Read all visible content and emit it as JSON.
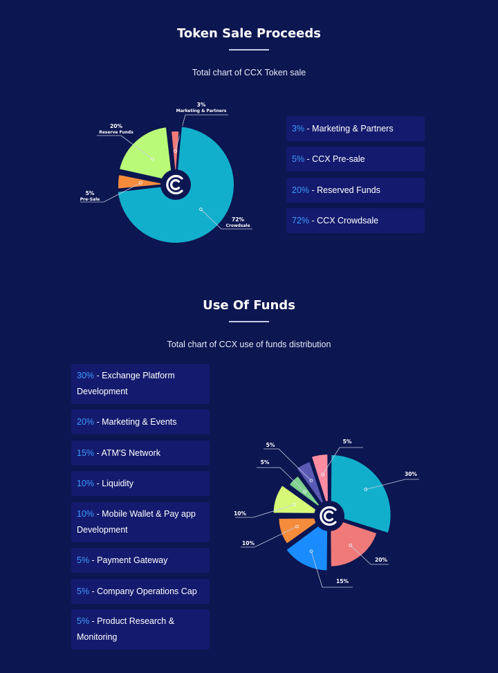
{
  "sale": {
    "title": "Token Sale Proceeds",
    "subtitle": "Total chart of CCX Token sale",
    "legend": [
      {
        "pct": "3%",
        "label": " - Marketing & Partners"
      },
      {
        "pct": "5%",
        "label": " - CCX Pre-sale"
      },
      {
        "pct": "20%",
        "label": " - Reserved Funds"
      },
      {
        "pct": "72%",
        "label": " - CCX Crowdsale"
      }
    ]
  },
  "funds": {
    "title": "Use Of Funds",
    "subtitle": "Total chart of CCX use of funds distribution",
    "legend": [
      {
        "pct": "30%",
        "label": " - Exchange Platform Development"
      },
      {
        "pct": "20%",
        "label": " - Marketing & Events"
      },
      {
        "pct": "15%",
        "label": " - ATM'S Network"
      },
      {
        "pct": "10%",
        "label": " - Liquidity"
      },
      {
        "pct": "10%",
        "label": " - Mobile Wallet & Pay app Development"
      },
      {
        "pct": "5%",
        "label": " - Payment Gateway"
      },
      {
        "pct": "5%",
        "label": " - Company Operations Cap"
      },
      {
        "pct": "5%",
        "label": " - Product Research & Monitoring"
      }
    ]
  },
  "chart_data": [
    {
      "type": "pie",
      "slices": [
        {
          "pct_label": "3%",
          "name": "Marketing & Partners",
          "value": 3,
          "color": "#f07a7a"
        },
        {
          "pct_label": "72%",
          "name": "Crowdsale",
          "value": 72,
          "color": "#12afcc"
        },
        {
          "pct_label": "5%",
          "name": "Pre-Sale",
          "value": 5,
          "color": "#f58c3c"
        },
        {
          "pct_label": "20%",
          "name": "Reserve Funds",
          "value": 20,
          "color": "#b9fa78"
        }
      ],
      "center_logo": "CCX"
    },
    {
      "type": "pie",
      "slices": [
        {
          "pct_label": "30%",
          "value": 30,
          "color": "#12afcc"
        },
        {
          "pct_label": "20%",
          "value": 20,
          "color": "#f07a7a"
        },
        {
          "pct_label": "15%",
          "value": 15,
          "color": "#1a8cff"
        },
        {
          "pct_label": "10%",
          "value": 10,
          "color": "#f58c3c"
        },
        {
          "pct_label": "10%",
          "value": 10,
          "color": "#d6fa78"
        },
        {
          "pct_label": "5%",
          "value": 5,
          "color": "#7ed28e"
        },
        {
          "pct_label": "5%",
          "value": 5,
          "color": "#5a5ab4"
        },
        {
          "pct_label": "5%",
          "value": 5,
          "color": "#ff8ca0"
        }
      ],
      "center_logo": "CCX"
    }
  ],
  "colors": {
    "background": "#0c1650",
    "legend_box": "#141b6e",
    "accent_pct": "#3d9bff"
  }
}
